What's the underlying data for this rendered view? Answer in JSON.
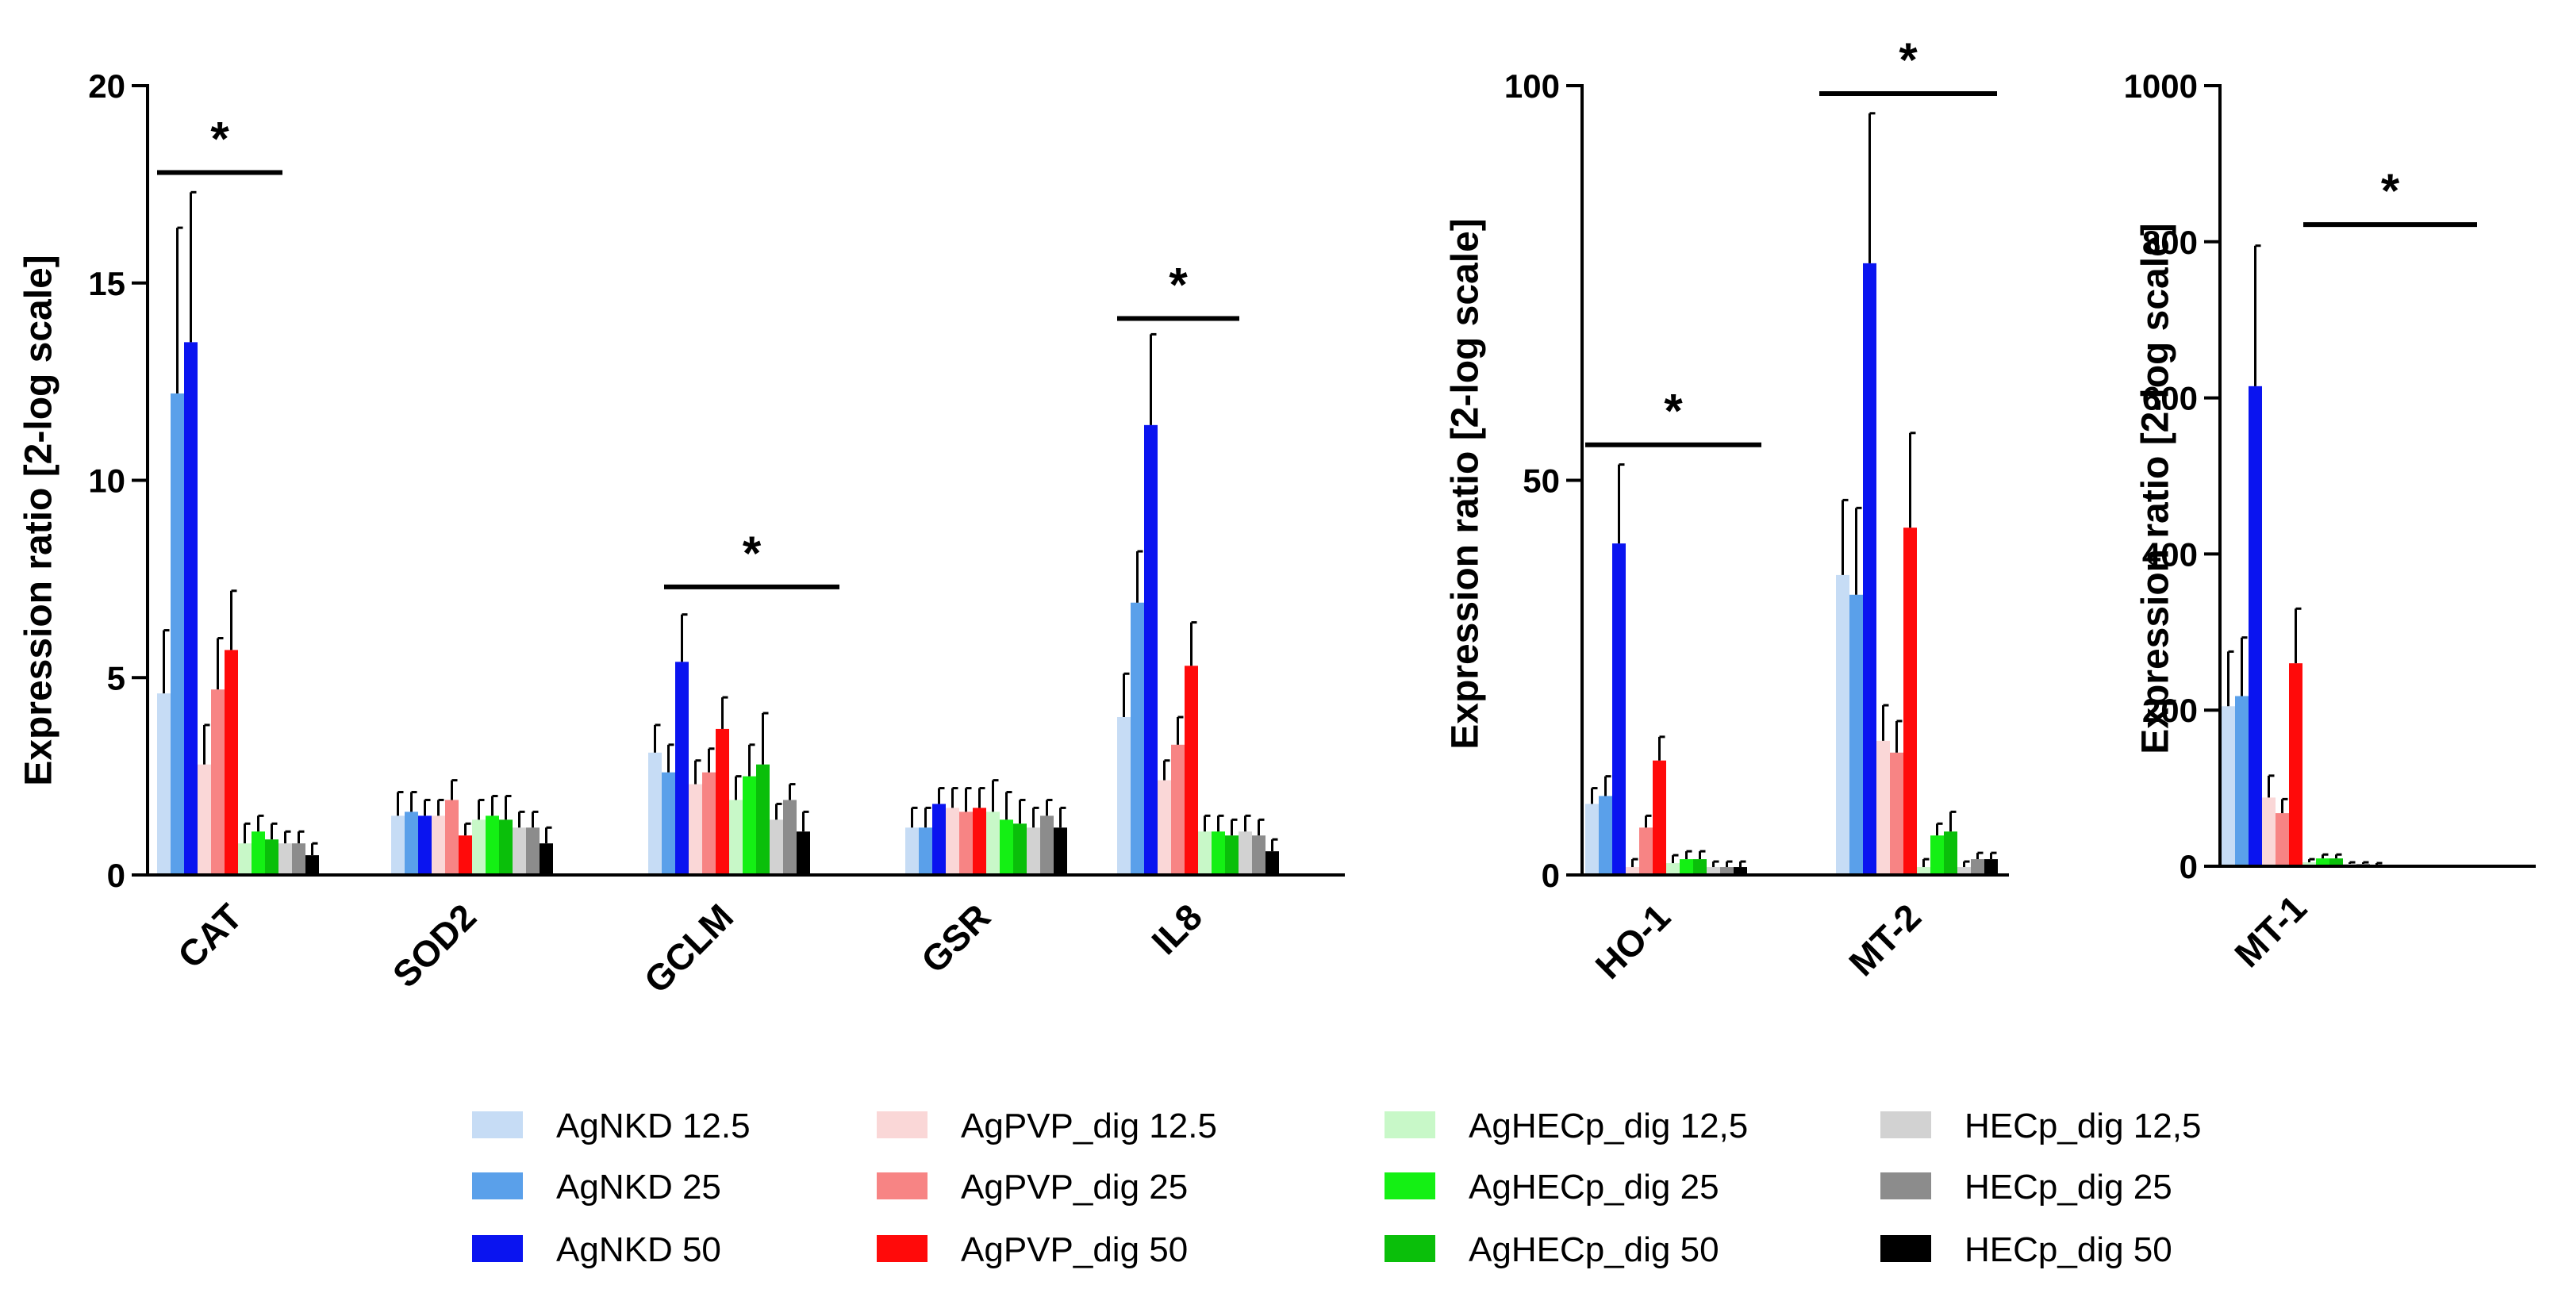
{
  "series": [
    {
      "name": "AgNKD 12.5",
      "color": "#c6dcf5"
    },
    {
      "name": "AgNKD 25",
      "color": "#5aa0ea"
    },
    {
      "name": "AgNKD 50",
      "color": "#0a14f0"
    },
    {
      "name": "AgPVP_dig 12.5",
      "color": "#fad7d7"
    },
    {
      "name": "AgPVP_dig 25",
      "color": "#f78484"
    },
    {
      "name": "AgPVP_dig 50",
      "color": "#ff0a0a"
    },
    {
      "name": "AgHECp_dig 12,5",
      "color": "#c8f8c8"
    },
    {
      "name": "AgHECp_dig 25",
      "color": "#14f014"
    },
    {
      "name": "AgHECp_dig 50",
      "color": "#0abf0a"
    },
    {
      "name": "HECp_dig 12,5",
      "color": "#d2d2d2"
    },
    {
      "name": "HECp_dig 25",
      "color": "#8c8c8c"
    },
    {
      "name": "HECp_dig 50",
      "color": "#000000"
    }
  ],
  "chart_data": [
    {
      "type": "bar",
      "ylabel": "Expression ratio [2-log scale]",
      "ylim": [
        0,
        20
      ],
      "yticks": [
        "0",
        "5",
        "10",
        "15",
        "20"
      ],
      "categories": [
        "CAT",
        "SOD2",
        "GCLM",
        "GSR",
        "IL8"
      ],
      "values": [
        [
          4.6,
          12.2,
          13.5,
          2.8,
          4.7,
          5.7,
          0.8,
          1.1,
          0.9,
          0.8,
          0.8,
          0.5
        ],
        [
          1.5,
          1.6,
          1.5,
          1.5,
          1.9,
          1.0,
          1.4,
          1.5,
          1.4,
          1.2,
          1.2,
          0.8
        ],
        [
          3.1,
          2.6,
          5.4,
          2.3,
          2.6,
          3.7,
          1.9,
          2.5,
          2.8,
          1.4,
          1.9,
          1.1
        ],
        [
          1.2,
          1.2,
          1.8,
          1.7,
          1.6,
          1.7,
          1.6,
          1.4,
          1.3,
          1.2,
          1.5,
          1.2
        ],
        [
          4.0,
          6.9,
          11.4,
          2.4,
          3.3,
          5.3,
          1.1,
          1.1,
          1.0,
          1.1,
          1.0,
          0.6
        ]
      ],
      "errors": [
        [
          1.6,
          4.2,
          3.8,
          1.0,
          1.3,
          1.5,
          0.5,
          0.4,
          0.4,
          0.3,
          0.3,
          0.3
        ],
        [
          0.6,
          0.5,
          0.4,
          0.4,
          0.5,
          0.3,
          0.5,
          0.5,
          0.6,
          0.4,
          0.4,
          0.4
        ],
        [
          0.7,
          0.7,
          1.2,
          0.6,
          0.6,
          0.8,
          0.6,
          0.8,
          1.3,
          0.4,
          0.4,
          0.5
        ],
        [
          0.5,
          0.5,
          0.4,
          0.5,
          0.6,
          0.5,
          0.8,
          0.7,
          0.6,
          0.5,
          0.4,
          0.5
        ],
        [
          1.1,
          1.3,
          2.3,
          0.5,
          0.7,
          1.1,
          0.4,
          0.4,
          0.4,
          0.4,
          0.4,
          0.3
        ]
      ],
      "significance": [
        {
          "from": 0,
          "to": 0,
          "y": 17.8,
          "label": "*"
        },
        {
          "from": 2,
          "to": 2,
          "y": 7.3,
          "label": "*"
        },
        {
          "from": 4,
          "to": 4,
          "y": 14.1,
          "label": "*"
        }
      ]
    },
    {
      "type": "bar",
      "ylabel": "Expression ratio [2-log scale]",
      "ylim": [
        0,
        100
      ],
      "yticks": [
        "0",
        "50",
        "100"
      ],
      "categories": [
        "HO-1",
        "MT-2"
      ],
      "values": [
        [
          9,
          10,
          42,
          1,
          6,
          14.5,
          1.5,
          2,
          2,
          1,
          1,
          1
        ],
        [
          38,
          35.5,
          77.5,
          17,
          15.5,
          44,
          1,
          5,
          5.5,
          1,
          2,
          2
        ]
      ],
      "errors": [
        [
          2,
          2.5,
          10,
          1,
          1.5,
          3,
          1,
          1,
          1,
          0.7,
          0.7,
          0.7
        ],
        [
          9.5,
          11,
          19,
          4.5,
          4,
          12,
          1,
          1.5,
          2.5,
          0.7,
          0.8,
          0.8
        ]
      ],
      "significance": [
        {
          "from": 0,
          "to": 0,
          "y": 54.5,
          "label": "*"
        },
        {
          "from": 1,
          "to": 1,
          "y": 99,
          "label": "*"
        }
      ]
    },
    {
      "type": "bar",
      "ylabel": "Expression ratio [2-log scale]",
      "ylim": [
        0,
        1000
      ],
      "yticks": [
        "0",
        "200",
        "400",
        "600",
        "800",
        "1000"
      ],
      "categories": [
        "MT-1"
      ],
      "values": [
        [
          205,
          218,
          615,
          88,
          68,
          260,
          5,
          10,
          10,
          3,
          3,
          2
        ]
      ],
      "errors": [
        [
          70,
          75,
          180,
          28,
          18,
          70,
          4,
          5,
          5,
          2,
          2,
          2
        ]
      ],
      "significance": [
        {
          "from": 0,
          "to": 0,
          "y": 822,
          "label": "*"
        }
      ]
    }
  ]
}
